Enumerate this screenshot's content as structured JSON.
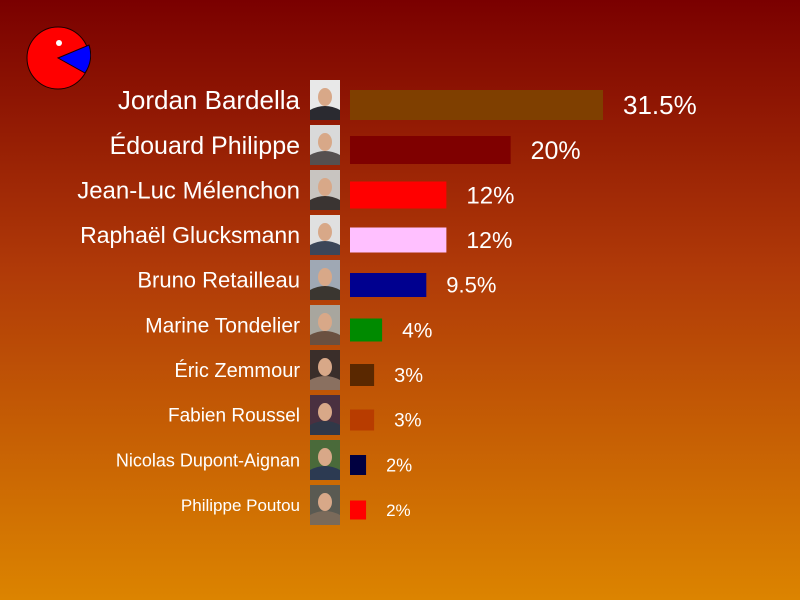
{
  "chart_data": {
    "type": "bar",
    "orientation": "horizontal",
    "title": "",
    "xlabel": "",
    "ylabel": "",
    "unit": "%",
    "xlim": [
      0,
      31.5
    ],
    "grid": false,
    "categories": [
      "Jordan Bardella",
      "Édouard Philippe",
      "Jean-Luc Mélenchon",
      "Raphaël Glucksmann",
      "Bruno Retailleau",
      "Marine Tondelier",
      "Éric Zemmour",
      "Fabien Roussel",
      "Nicolas Dupont-Aignan",
      "Philippe Poutou"
    ],
    "values": [
      31.5,
      20,
      12,
      12,
      9.5,
      4,
      3,
      3,
      2,
      2
    ],
    "value_labels": [
      "31.5%",
      "20%",
      "12%",
      "12%",
      "9.5%",
      "4%",
      "3%",
      "3%",
      "2%",
      "2%"
    ],
    "colors": [
      "#7f3f00",
      "#7f0000",
      "#ff0000",
      "#ffc0ff",
      "#00008f",
      "#008a00",
      "#5a2800",
      "#b83c00",
      "#000040",
      "#ff0000"
    ],
    "photo_colors": [
      [
        "#e8e8e8",
        "#2a2a30"
      ],
      [
        "#d9d9d9",
        "#555050"
      ],
      [
        "#c8c4c0",
        "#3a3432"
      ],
      [
        "#e0e0e0",
        "#3c4658"
      ],
      [
        "#9fa8b4",
        "#3a3630"
      ],
      [
        "#a8a69e",
        "#6a5040"
      ],
      [
        "#3a2e2a",
        "#8a7060"
      ],
      [
        "#4a3040",
        "#303848"
      ],
      [
        "#4a6a3a",
        "#2c3a52"
      ],
      [
        "#5a5a52",
        "#7a6a5a"
      ]
    ]
  },
  "logo": {
    "name": "pie-logo",
    "colors": [
      "#ff0000",
      "#0000ff"
    ]
  }
}
